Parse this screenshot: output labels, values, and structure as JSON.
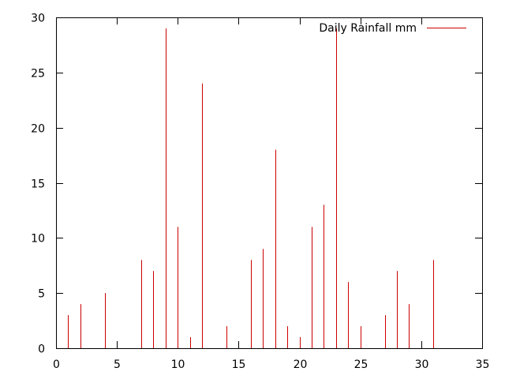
{
  "chart_data": {
    "type": "bar",
    "style": "impulses",
    "series": [
      {
        "name": "Daily Rainfall mm",
        "color": "#cc0000",
        "x": [
          1,
          2,
          4,
          7,
          8,
          9,
          10,
          11,
          12,
          14,
          16,
          17,
          18,
          19,
          20,
          21,
          22,
          23,
          24,
          25,
          27,
          28,
          29,
          31
        ],
        "values": [
          3,
          4,
          5,
          8,
          7,
          29,
          11,
          1,
          24,
          2,
          8,
          9,
          18,
          2,
          1,
          11,
          13,
          29,
          6,
          2,
          3,
          7,
          4,
          8
        ]
      }
    ],
    "xlim": [
      0,
      35
    ],
    "ylim": [
      0,
      30
    ],
    "xticks": [
      0,
      5,
      10,
      15,
      20,
      25,
      30,
      35
    ],
    "yticks": [
      0,
      5,
      10,
      15,
      20,
      25,
      30
    ],
    "xlabel": "",
    "ylabel": "",
    "title": "",
    "grid": false,
    "legend_position": "top-right"
  }
}
